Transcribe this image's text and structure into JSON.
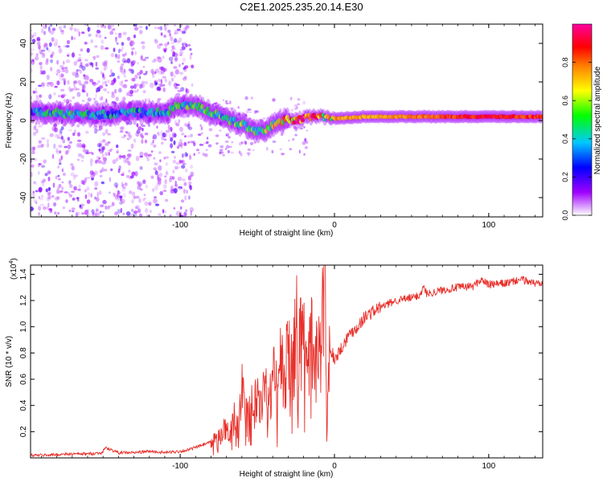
{
  "title": "C2E1.2025.235.20.14.E30",
  "chart_data": [
    {
      "type": "heatmap",
      "title": "C2E1.2025.235.20.14.E30",
      "xlabel": "Height of straight line (km)",
      "ylabel": "Frequency (Hz)",
      "xlim": [
        -197,
        135
      ],
      "ylim": [
        -50,
        50
      ],
      "xticks": [
        -100,
        0,
        100
      ],
      "xtick_labels": [
        "-100",
        "0",
        "100"
      ],
      "yticks": [
        -40,
        -20,
        0,
        20,
        40
      ],
      "ytick_labels": [
        "-40",
        "-20",
        "0",
        "20",
        "40"
      ],
      "ridge": {
        "x": [
          -195,
          -180,
          -165,
          -150,
          -135,
          -120,
          -110,
          -100,
          -90,
          -80,
          -70,
          -60,
          -52,
          -45,
          -40,
          -35,
          -25,
          -15,
          -10,
          -5,
          0,
          20,
          50,
          80,
          100,
          120,
          135
        ],
        "y": [
          4,
          4,
          3,
          3,
          4,
          4,
          4,
          8,
          8,
          4,
          1,
          -2,
          -5,
          -5,
          -3,
          0,
          0,
          2,
          3,
          1,
          1,
          2,
          2,
          2,
          2,
          2,
          2
        ],
        "amplitude": [
          0.35,
          0.5,
          0.45,
          0.4,
          0.45,
          0.4,
          0.45,
          0.5,
          0.5,
          0.55,
          0.5,
          0.55,
          0.55,
          0.6,
          0.6,
          0.7,
          0.9,
          0.95,
          0.75,
          0.7,
          0.75,
          0.7,
          0.75,
          0.85,
          0.9,
          0.85,
          0.85
        ]
      },
      "colorbar": {
        "label": "Normalized spectral amplitude",
        "range": [
          0,
          1
        ],
        "ticks": [
          0.0,
          0.2,
          0.4,
          0.6,
          0.8
        ],
        "tick_labels": [
          "0.0",
          "0.2",
          "0.4",
          "0.6",
          "0.8"
        ],
        "colormap": [
          "#ffffff",
          "#a000ff",
          "#0000ff",
          "#00c8ff",
          "#00ff00",
          "#ffff00",
          "#ff8000",
          "#ff0000",
          "#ff00a0"
        ]
      }
    },
    {
      "type": "line",
      "xlabel": "Height of straight line (km)",
      "ylabel": "SNR (10 * v/v)",
      "y_multiplier": "(x10^4)",
      "y_multiplier_base": "(x10",
      "y_multiplier_exp": "4",
      "y_multiplier_close": ")",
      "xlim": [
        -197,
        135
      ],
      "ylim": [
        0,
        1.47
      ],
      "xticks": [
        -100,
        0,
        100
      ],
      "xtick_labels": [
        "-100",
        "0",
        "100"
      ],
      "yticks": [
        0.2,
        0.4,
        0.6,
        0.8,
        1.0,
        1.2,
        1.4
      ],
      "ytick_labels": [
        "0.2",
        "0.4",
        "0.6",
        "0.8",
        "1.0",
        "1.2",
        "1.4"
      ],
      "series": [
        {
          "name": "SNR",
          "color": "#e8302a",
          "x": [
            -197,
            -190,
            -180,
            -170,
            -160,
            -150,
            -149,
            -140,
            -130,
            -120,
            -110,
            -100,
            -95,
            -90,
            -85,
            -80,
            -75,
            -72,
            -68,
            -65,
            -62,
            -60,
            -58,
            -55,
            -52,
            -50,
            -48,
            -45,
            -42,
            -40,
            -37,
            -35,
            -32,
            -30,
            -27,
            -25,
            -22,
            -20,
            -17,
            -15,
            -12,
            -10,
            -8,
            -6,
            -5,
            -3,
            0,
            5,
            10,
            15,
            20,
            30,
            40,
            50,
            55,
            58,
            60,
            70,
            80,
            90,
            95,
            100,
            110,
            115,
            120,
            125,
            130,
            135
          ],
          "y": [
            0.02,
            0.02,
            0.025,
            0.03,
            0.03,
            0.04,
            0.08,
            0.04,
            0.04,
            0.05,
            0.04,
            0.05,
            0.06,
            0.08,
            0.1,
            0.12,
            0.15,
            0.22,
            0.18,
            0.3,
            0.25,
            0.55,
            0.3,
            0.45,
            0.35,
            0.6,
            0.45,
            0.55,
            0.4,
            0.7,
            0.5,
            0.75,
            0.55,
            0.9,
            0.6,
            1.05,
            0.75,
            0.85,
            0.65,
            0.9,
            0.75,
            0.8,
            0.95,
            1.47,
            0.15,
            0.85,
            0.75,
            0.85,
            0.95,
            1.0,
            1.08,
            1.15,
            1.2,
            1.22,
            1.24,
            1.3,
            1.25,
            1.28,
            1.3,
            1.31,
            1.36,
            1.32,
            1.33,
            1.34,
            1.36,
            1.35,
            1.33,
            1.34
          ]
        }
      ]
    }
  ]
}
